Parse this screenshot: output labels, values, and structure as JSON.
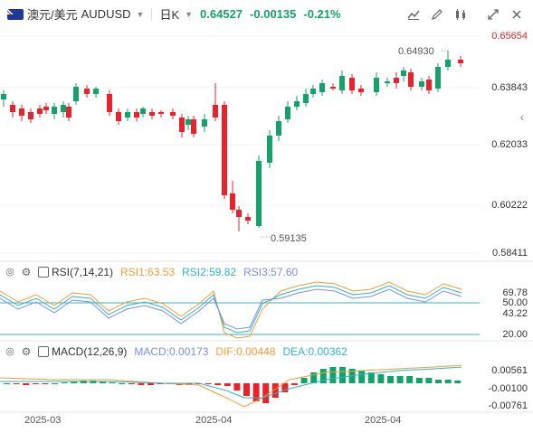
{
  "header": {
    "pair_name": "澳元/美元",
    "symbol": "AUDUSD",
    "timeframe": "日K",
    "price": "0.64527",
    "change": "-0.00135",
    "change_pct": "-0.21%",
    "flag_icon": "australia-flag-icon",
    "tools": [
      "candle-style-icon",
      "draw-icon",
      "indicator-icon",
      "fullscreen-icon",
      "close-icon"
    ]
  },
  "main_chart": {
    "y_ticks": [
      "0.65654",
      "0.63843",
      "0.62033",
      "0.60222",
      "0.58411"
    ],
    "high_label": "0.64930",
    "low_label": "0.59135",
    "up_color": "#13a36a",
    "down_color": "#e8232c"
  },
  "rsi": {
    "name": "RSI(7,14,21)",
    "rsi1": "RSI1:63.53",
    "rsi2": "RSI2:59.82",
    "rsi3": "RSI3:57.60",
    "y_ticks": [
      "69.78",
      "50.00",
      "43.22",
      "20.00"
    ],
    "colors": {
      "rsi1": "#f39c36",
      "rsi2": "#2db5c9",
      "rsi3": "#7b8fe0"
    }
  },
  "macd": {
    "name": "MACD(12,26,9)",
    "macd": "MACD:0.00173",
    "dif": "DIF:0.00448",
    "dea": "DEA:0.00362",
    "y_ticks": [
      "0.00561",
      "-0.00100",
      "-0.00761"
    ],
    "colors": {
      "macd": "#7b8fe0",
      "dif": "#f39c36",
      "dea": "#2db5c9"
    }
  },
  "x_dates": [
    "2025-03",
    "2025-04",
    "2025-04"
  ]
}
